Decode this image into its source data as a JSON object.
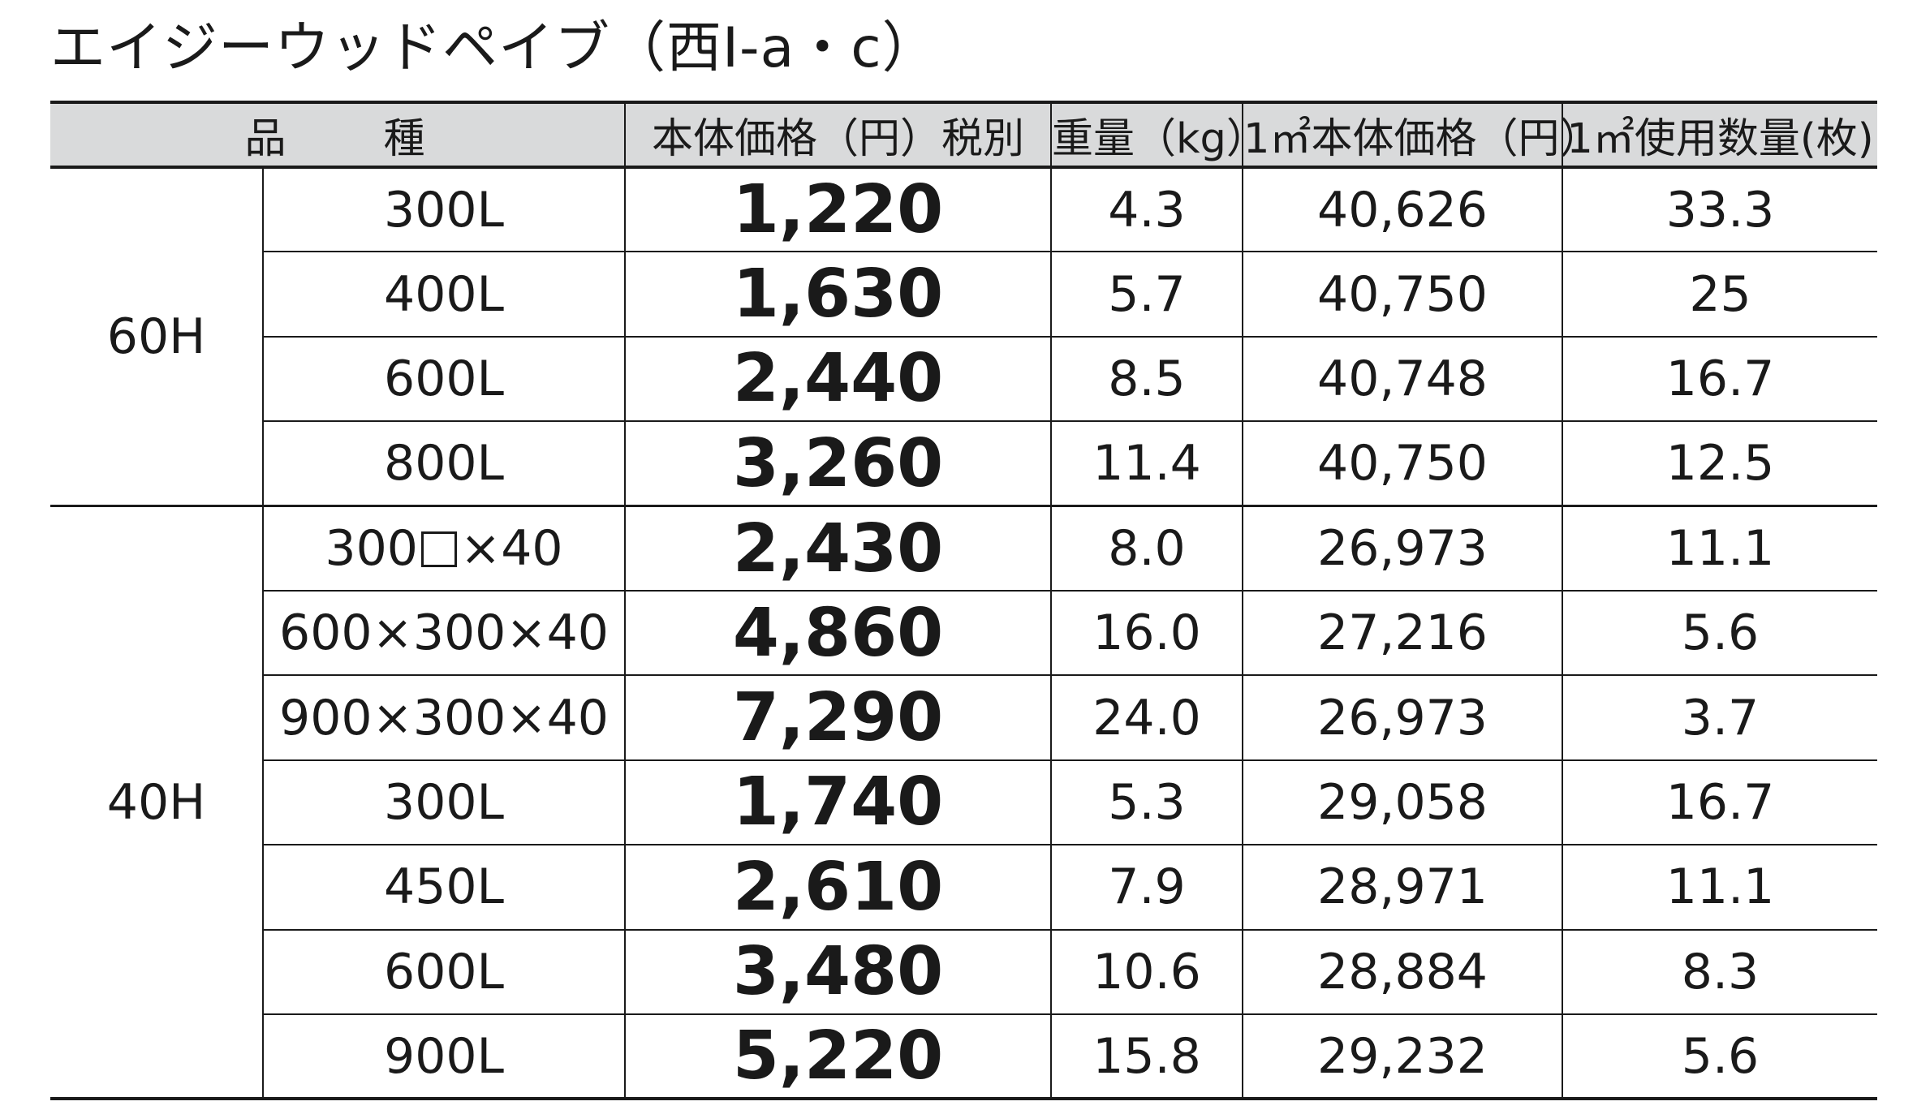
{
  "title": "エイジーウッドペイブ（西Ⅰ-a・c）",
  "headers": {
    "variety": "品　　種",
    "price": "本体価格（円）税別",
    "weight": "重量（kg）",
    "price_per_m2": "1㎡本体価格（円）",
    "qty_per_m2": "1㎡使用数量(枚)"
  },
  "groups": [
    {
      "height": "60H",
      "rows": [
        {
          "size": "300L",
          "price": "1,220",
          "weight": "4.3",
          "price_per_m2": "40,626",
          "qty_per_m2": "33.3"
        },
        {
          "size": "400L",
          "price": "1,630",
          "weight": "5.7",
          "price_per_m2": "40,750",
          "qty_per_m2": "25"
        },
        {
          "size": "600L",
          "price": "2,440",
          "weight": "8.5",
          "price_per_m2": "40,748",
          "qty_per_m2": "16.7"
        },
        {
          "size": "800L",
          "price": "3,260",
          "weight": "11.4",
          "price_per_m2": "40,750",
          "qty_per_m2": "12.5"
        }
      ]
    },
    {
      "height": "40H",
      "rows": [
        {
          "size_prefix": "300",
          "size_suffix": "×40",
          "price": "2,430",
          "weight": "8.0",
          "price_per_m2": "26,973",
          "qty_per_m2": "11.1"
        },
        {
          "size": "600×300×40",
          "price": "4,860",
          "weight": "16.0",
          "price_per_m2": "27,216",
          "qty_per_m2": "5.6"
        },
        {
          "size": "900×300×40",
          "price": "7,290",
          "weight": "24.0",
          "price_per_m2": "26,973",
          "qty_per_m2": "3.7"
        },
        {
          "size": "300L",
          "price": "1,740",
          "weight": "5.3",
          "price_per_m2": "29,058",
          "qty_per_m2": "16.7"
        },
        {
          "size": "450L",
          "price": "2,610",
          "weight": "7.9",
          "price_per_m2": "28,971",
          "qty_per_m2": "11.1"
        },
        {
          "size": "600L",
          "price": "3,480",
          "weight": "10.6",
          "price_per_m2": "28,884",
          "qty_per_m2": "8.3"
        },
        {
          "size": "900L",
          "price": "5,220",
          "weight": "15.8",
          "price_per_m2": "29,232",
          "qty_per_m2": "5.6"
        }
      ]
    }
  ]
}
